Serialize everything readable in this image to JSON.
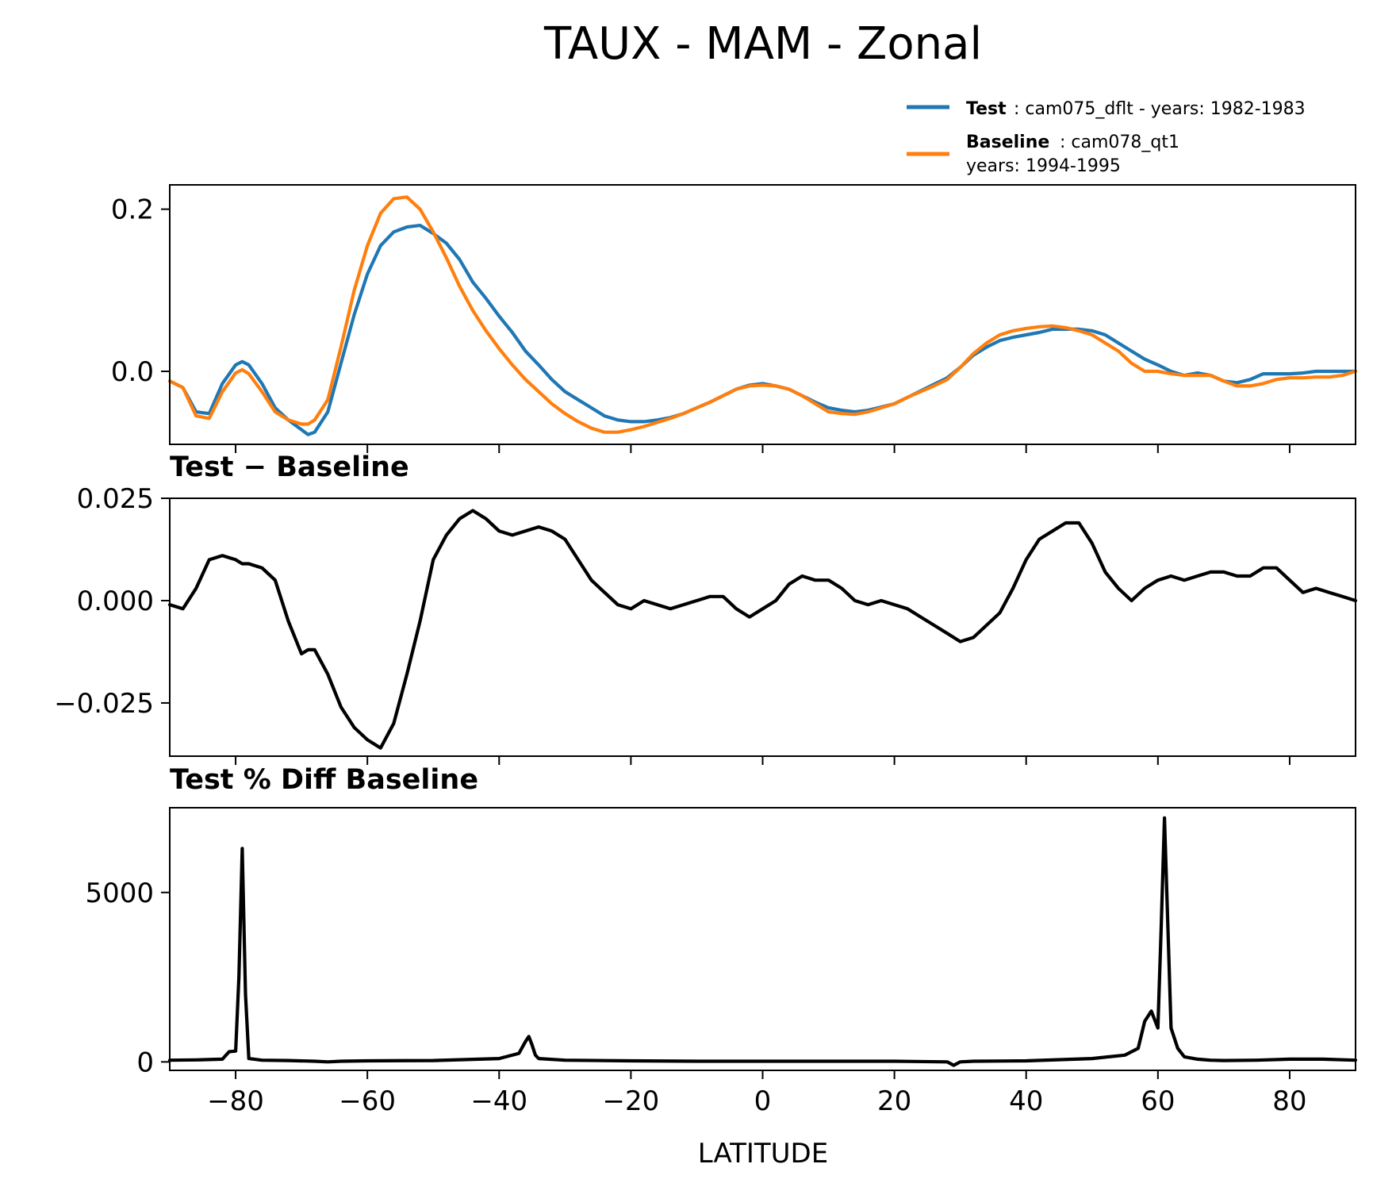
{
  "figure": {
    "title": "TAUX - MAM - Zonal",
    "colors": {
      "test": "#1f77b4",
      "baseline": "#ff7f0e",
      "diff": "#000000"
    }
  },
  "legend": {
    "test_label": "Test",
    "test_text": ": cam075_dflt - years: 1982-1983",
    "baseline_label": "Baseline",
    "baseline_text": ": cam078_qt1",
    "baseline_text2": "years: 1994-1995"
  },
  "chart_data": [
    {
      "type": "line",
      "title": "",
      "xlabel": "",
      "ylabel": "",
      "xlim": [
        -90,
        90
      ],
      "ylim": [
        -0.09,
        0.23
      ],
      "yticks": [
        0.0,
        0.2
      ],
      "ytick_labels": [
        "0.0",
        "0.2"
      ],
      "series": [
        {
          "name": "Test",
          "x": [
            -90,
            -88,
            -86,
            -84,
            -82,
            -80,
            -79,
            -78,
            -76,
            -74,
            -72,
            -70,
            -69,
            -68,
            -66,
            -64,
            -62,
            -60,
            -58,
            -56,
            -54,
            -52,
            -50,
            -48,
            -46,
            -44,
            -42,
            -40,
            -38,
            -36,
            -34,
            -32,
            -30,
            -28,
            -26,
            -24,
            -22,
            -20,
            -18,
            -16,
            -14,
            -12,
            -10,
            -8,
            -6,
            -4,
            -2,
            0,
            2,
            4,
            6,
            8,
            10,
            12,
            14,
            16,
            18,
            20,
            22,
            24,
            26,
            28,
            30,
            32,
            34,
            36,
            38,
            40,
            42,
            44,
            46,
            48,
            50,
            52,
            54,
            56,
            58,
            60,
            62,
            64,
            66,
            68,
            70,
            72,
            74,
            76,
            78,
            80,
            82,
            84,
            86,
            88,
            90
          ],
          "y": [
            -0.012,
            -0.02,
            -0.05,
            -0.052,
            -0.015,
            0.008,
            0.012,
            0.008,
            -0.015,
            -0.045,
            -0.06,
            -0.072,
            -0.078,
            -0.075,
            -0.05,
            0.01,
            0.07,
            0.12,
            0.155,
            0.172,
            0.178,
            0.18,
            0.17,
            0.158,
            0.138,
            0.11,
            0.09,
            0.068,
            0.048,
            0.025,
            0.008,
            -0.01,
            -0.025,
            -0.035,
            -0.045,
            -0.055,
            -0.06,
            -0.062,
            -0.062,
            -0.06,
            -0.057,
            -0.052,
            -0.045,
            -0.038,
            -0.03,
            -0.022,
            -0.017,
            -0.015,
            -0.018,
            -0.022,
            -0.03,
            -0.038,
            -0.045,
            -0.048,
            -0.05,
            -0.048,
            -0.044,
            -0.04,
            -0.032,
            -0.024,
            -0.016,
            -0.008,
            0.005,
            0.02,
            0.03,
            0.038,
            0.042,
            0.045,
            0.048,
            0.052,
            0.052,
            0.052,
            0.05,
            0.045,
            0.035,
            0.025,
            0.015,
            0.008,
            0.0,
            -0.005,
            -0.002,
            -0.005,
            -0.012,
            -0.014,
            -0.01,
            -0.003,
            -0.003,
            -0.003,
            -0.002,
            0.0,
            0.0,
            0.0,
            0.0
          ]
        },
        {
          "name": "Baseline",
          "x": [
            -90,
            -88,
            -86,
            -84,
            -82,
            -80,
            -79,
            -78,
            -76,
            -74,
            -72,
            -70,
            -69,
            -68,
            -66,
            -64,
            -62,
            -60,
            -58,
            -56,
            -54,
            -52,
            -50,
            -48,
            -46,
            -44,
            -42,
            -40,
            -38,
            -36,
            -34,
            -32,
            -30,
            -28,
            -26,
            -24,
            -22,
            -20,
            -18,
            -16,
            -14,
            -12,
            -10,
            -8,
            -6,
            -4,
            -2,
            0,
            2,
            4,
            6,
            8,
            10,
            12,
            14,
            16,
            18,
            20,
            22,
            24,
            26,
            28,
            30,
            32,
            34,
            36,
            38,
            40,
            42,
            44,
            46,
            48,
            50,
            52,
            54,
            56,
            58,
            60,
            62,
            64,
            66,
            68,
            70,
            72,
            74,
            76,
            78,
            80,
            82,
            84,
            86,
            88,
            90
          ],
          "y": [
            -0.012,
            -0.02,
            -0.055,
            -0.058,
            -0.025,
            -0.002,
            0.002,
            -0.003,
            -0.025,
            -0.05,
            -0.06,
            -0.065,
            -0.065,
            -0.06,
            -0.035,
            0.03,
            0.1,
            0.155,
            0.195,
            0.213,
            0.215,
            0.2,
            0.172,
            0.14,
            0.105,
            0.075,
            0.05,
            0.028,
            0.008,
            -0.01,
            -0.025,
            -0.04,
            -0.052,
            -0.062,
            -0.07,
            -0.075,
            -0.075,
            -0.072,
            -0.068,
            -0.063,
            -0.058,
            -0.052,
            -0.045,
            -0.038,
            -0.03,
            -0.022,
            -0.018,
            -0.017,
            -0.018,
            -0.022,
            -0.03,
            -0.04,
            -0.05,
            -0.052,
            -0.053,
            -0.05,
            -0.045,
            -0.04,
            -0.032,
            -0.025,
            -0.018,
            -0.01,
            0.005,
            0.022,
            0.035,
            0.045,
            0.05,
            0.053,
            0.055,
            0.056,
            0.054,
            0.05,
            0.045,
            0.035,
            0.025,
            0.01,
            0.0,
            0.0,
            -0.003,
            -0.005,
            -0.005,
            -0.005,
            -0.012,
            -0.018,
            -0.018,
            -0.015,
            -0.01,
            -0.008,
            -0.008,
            -0.007,
            -0.007,
            -0.005,
            0.0
          ]
        }
      ]
    },
    {
      "type": "line",
      "title": "Test − Baseline",
      "xlabel": "",
      "ylabel": "",
      "xlim": [
        -90,
        90
      ],
      "ylim": [
        -0.038,
        0.025
      ],
      "yticks": [
        -0.025,
        0.0,
        0.025
      ],
      "ytick_labels": [
        "−0.025",
        "0.000",
        "0.025"
      ],
      "series": [
        {
          "name": "Test − Baseline",
          "x": [
            -90,
            -88,
            -86,
            -84,
            -82,
            -80,
            -79,
            -78,
            -76,
            -74,
            -72,
            -70,
            -69,
            -68,
            -66,
            -64,
            -62,
            -60,
            -58,
            -56,
            -54,
            -52,
            -50,
            -48,
            -46,
            -44,
            -42,
            -40,
            -38,
            -36,
            -34,
            -32,
            -30,
            -28,
            -26,
            -24,
            -22,
            -20,
            -18,
            -16,
            -14,
            -12,
            -10,
            -8,
            -6,
            -4,
            -2,
            0,
            2,
            4,
            6,
            8,
            10,
            12,
            14,
            16,
            18,
            20,
            22,
            24,
            26,
            28,
            30,
            32,
            34,
            36,
            38,
            40,
            42,
            44,
            46,
            48,
            50,
            52,
            54,
            56,
            58,
            60,
            62,
            64,
            66,
            68,
            70,
            72,
            74,
            76,
            78,
            80,
            82,
            84,
            86,
            88,
            90
          ],
          "y": [
            -0.001,
            -0.002,
            0.003,
            0.01,
            0.011,
            0.01,
            0.009,
            0.009,
            0.008,
            0.005,
            -0.005,
            -0.013,
            -0.012,
            -0.012,
            -0.018,
            -0.026,
            -0.031,
            -0.034,
            -0.036,
            -0.03,
            -0.018,
            -0.005,
            0.01,
            0.016,
            0.02,
            0.022,
            0.02,
            0.017,
            0.016,
            0.017,
            0.018,
            0.017,
            0.015,
            0.01,
            0.005,
            0.002,
            -0.001,
            -0.002,
            0.0,
            -0.001,
            -0.002,
            -0.001,
            0.0,
            0.001,
            0.001,
            -0.002,
            -0.004,
            -0.002,
            0.0,
            0.004,
            0.006,
            0.005,
            0.005,
            0.003,
            0.0,
            -0.001,
            0.0,
            -0.001,
            -0.002,
            -0.004,
            -0.006,
            -0.008,
            -0.01,
            -0.009,
            -0.006,
            -0.003,
            0.003,
            0.01,
            0.015,
            0.017,
            0.019,
            0.019,
            0.014,
            0.007,
            0.003,
            0.0,
            0.003,
            0.005,
            0.006,
            0.005,
            0.006,
            0.007,
            0.007,
            0.006,
            0.006,
            0.008,
            0.008,
            0.005,
            0.002,
            0.003,
            0.002,
            0.001,
            0.0
          ]
        }
      ]
    },
    {
      "type": "line",
      "title": "Test % Diff Baseline",
      "xlabel": "LATITUDE",
      "ylabel": "",
      "xlim": [
        -90,
        90
      ],
      "ylim": [
        -250,
        7500
      ],
      "yticks": [
        0,
        5000
      ],
      "ytick_labels": [
        "0",
        "5000"
      ],
      "xticks": [
        -80,
        -60,
        -40,
        -20,
        0,
        20,
        40,
        60,
        80
      ],
      "xtick_labels": [
        "−80",
        "−60",
        "−40",
        "−20",
        "0",
        "20",
        "40",
        "60",
        "80"
      ],
      "series": [
        {
          "name": "Test % Diff Baseline",
          "x": [
            -90,
            -86,
            -82,
            -81,
            -80,
            -79.5,
            -79,
            -78.5,
            -78,
            -76,
            -72,
            -68,
            -66,
            -64,
            -60,
            -50,
            -40,
            -37,
            -36,
            -35.5,
            -35,
            -34.5,
            -34,
            -30,
            -20,
            -10,
            0,
            10,
            20,
            28,
            29,
            30,
            32,
            40,
            50,
            55,
            57,
            58,
            59,
            60,
            60.5,
            61,
            62,
            63,
            64,
            66,
            68,
            70,
            75,
            80,
            85,
            90
          ],
          "y": [
            50,
            60,
            80,
            300,
            320,
            2500,
            6300,
            2000,
            100,
            50,
            40,
            20,
            0,
            20,
            30,
            40,
            100,
            250,
            600,
            750,
            500,
            200,
            100,
            50,
            30,
            20,
            20,
            20,
            20,
            0,
            -100,
            0,
            20,
            30,
            100,
            200,
            400,
            1200,
            1500,
            1000,
            4000,
            7200,
            1000,
            400,
            150,
            80,
            50,
            40,
            50,
            80,
            80,
            50
          ]
        }
      ]
    }
  ]
}
